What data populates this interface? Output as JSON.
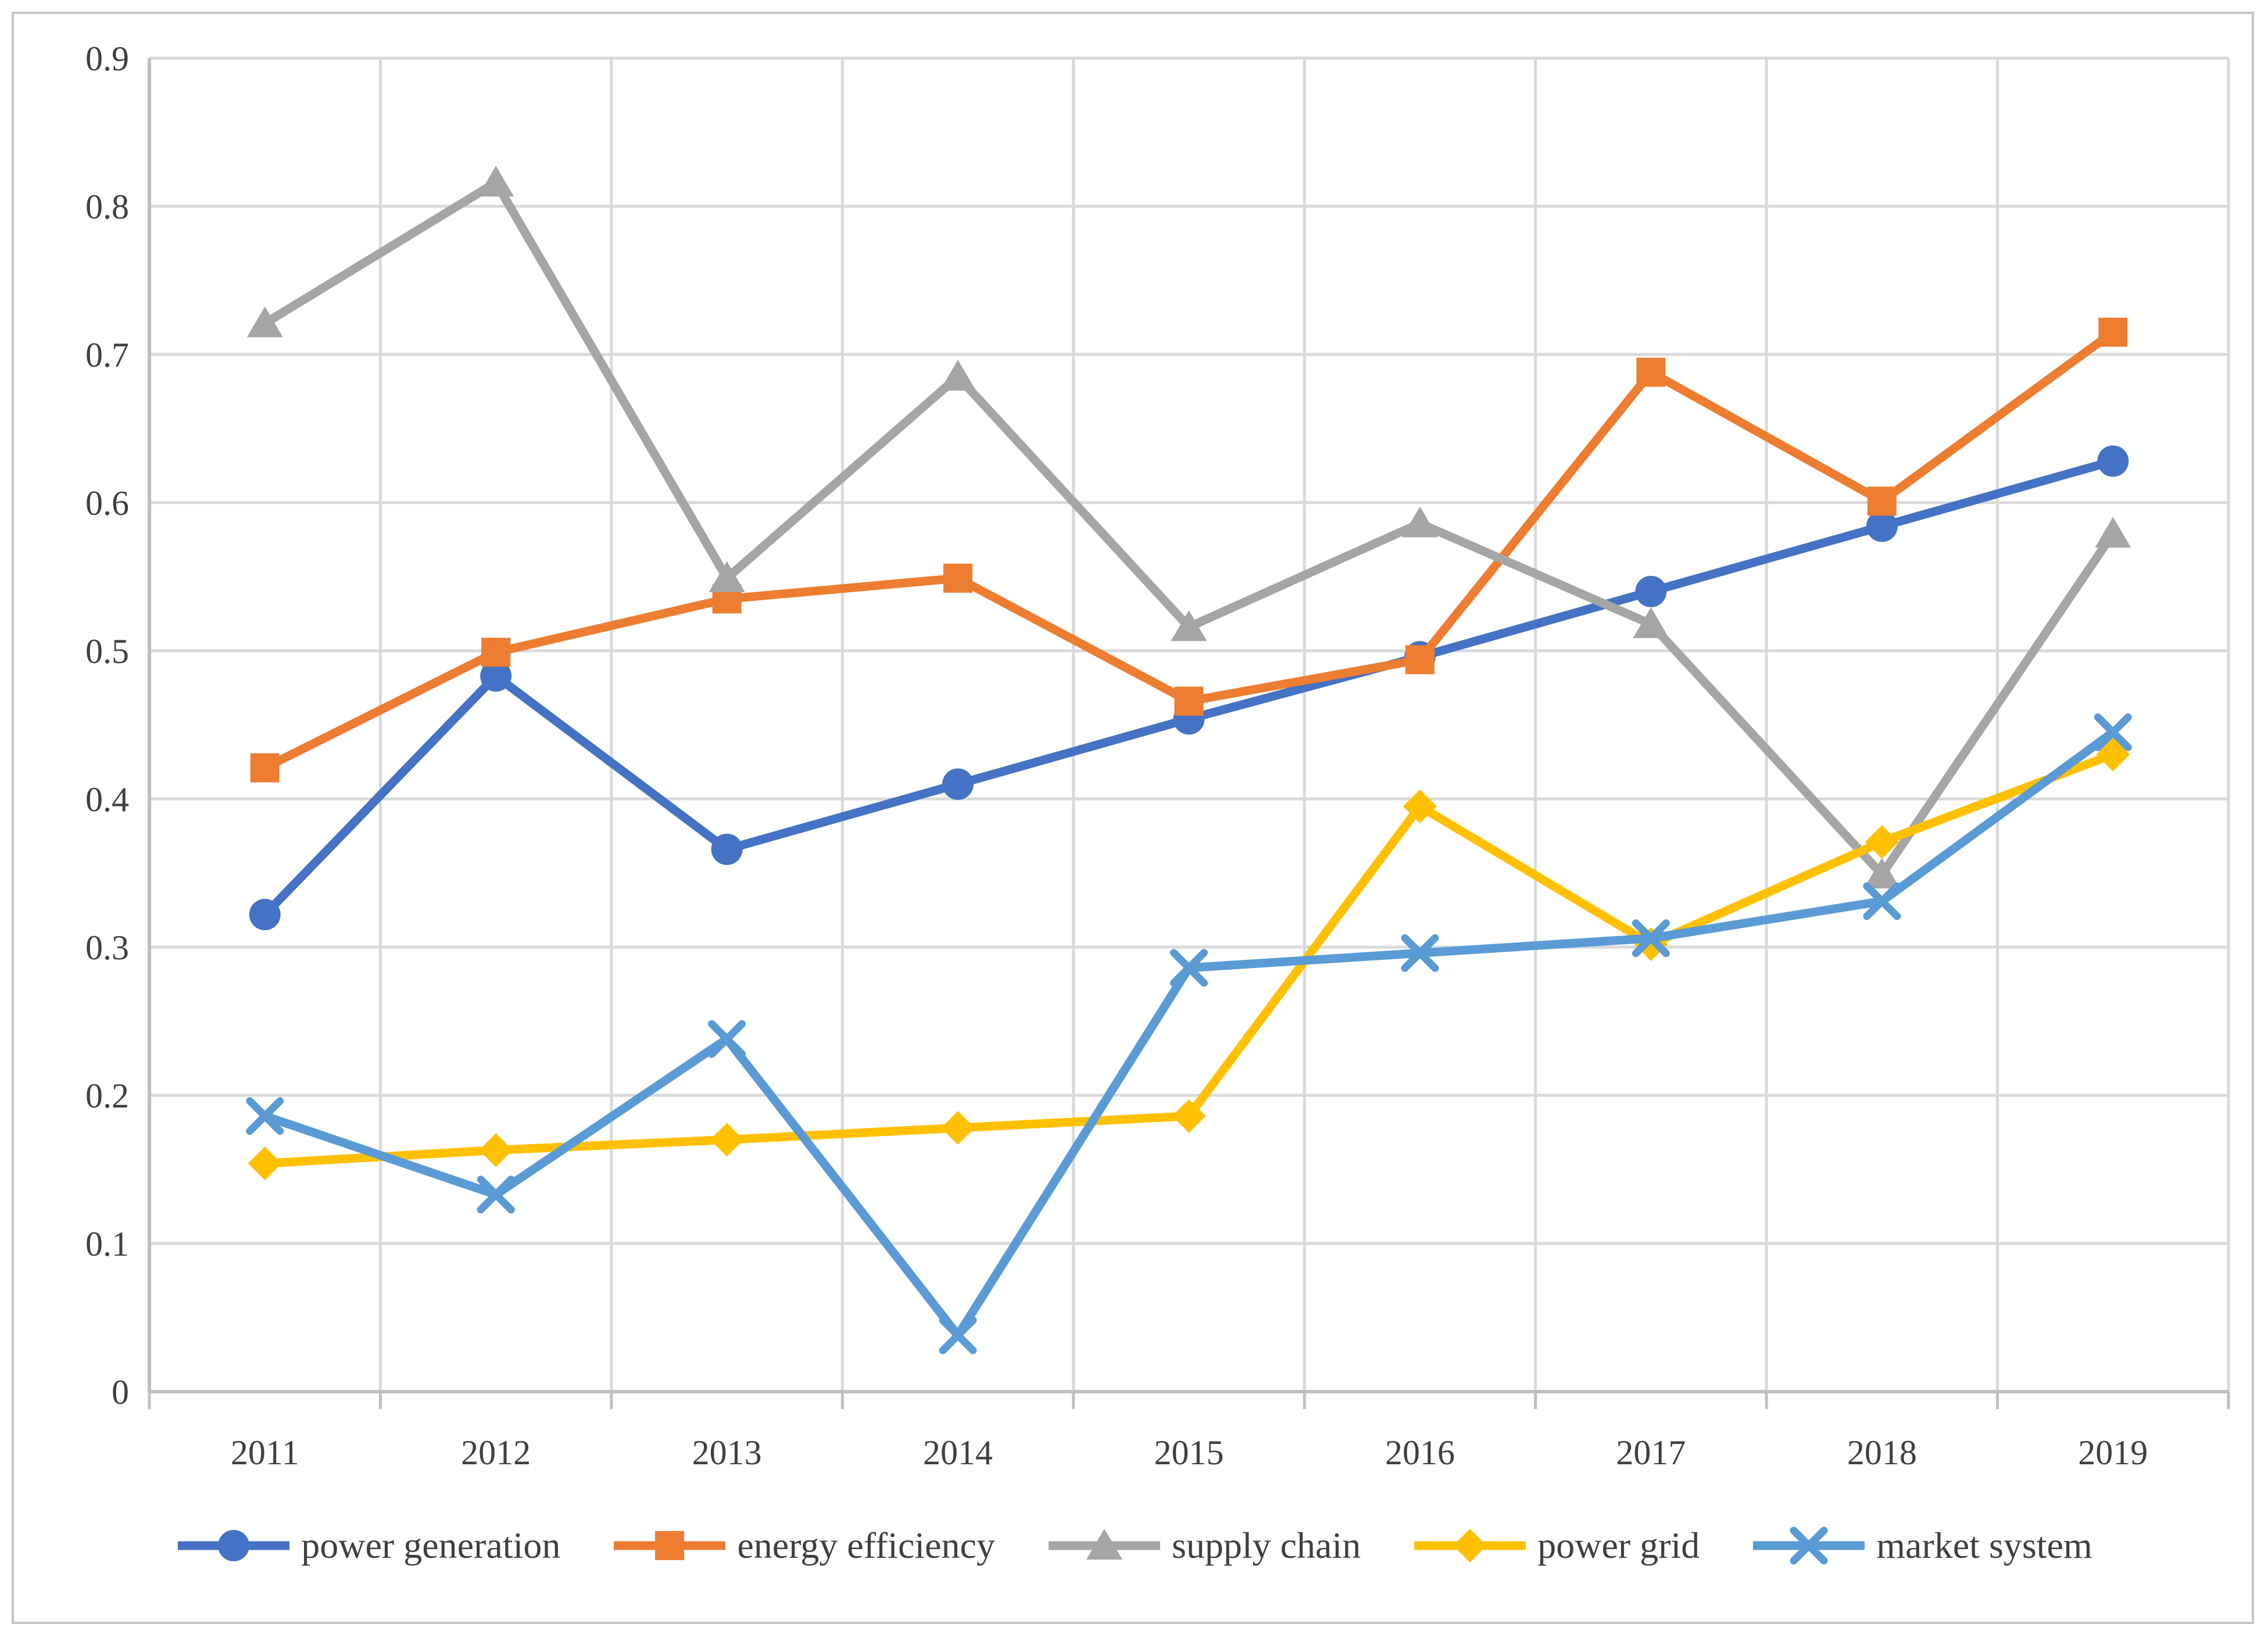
{
  "style": {
    "background": "#FFFFFF",
    "figure_border_color": "#C6C6C6",
    "gridline_color": "#D9D9D9",
    "axis_color": "#BFBFBF",
    "tick_color": "#BFBFBF",
    "label_color": "#3F3F3F"
  },
  "chart_data": {
    "type": "line",
    "title": "",
    "xlabel": "",
    "ylabel": "",
    "x": [
      "2011",
      "2012",
      "2013",
      "2014",
      "2015",
      "2016",
      "2017",
      "2018",
      "2019"
    ],
    "ylim": [
      0,
      0.9
    ],
    "ytick_step": 0.1,
    "ytick_labels_top_to_bottom": [
      "0.9",
      "0.8",
      "0.7",
      "0.6",
      "0.5",
      "0.4",
      "0.3",
      "0.2",
      "0.1",
      "0"
    ],
    "grid": true,
    "legend_position": "bottom",
    "series": [
      {
        "name": "power generation",
        "color": "#4472C4",
        "marker": "circle",
        "values": [
          0.322,
          0.483,
          0.366,
          0.41,
          0.454,
          0.496,
          0.54,
          0.584,
          0.628
        ]
      },
      {
        "name": "energy efficiency",
        "color": "#ED7D31",
        "marker": "square",
        "values": [
          0.421,
          0.499,
          0.535,
          0.549,
          0.466,
          0.494,
          0.688,
          0.601,
          0.715
        ]
      },
      {
        "name": "supply chain",
        "color": "#A5A5A5",
        "marker": "triangle",
        "values": [
          0.721,
          0.816,
          0.549,
          0.685,
          0.516,
          0.586,
          0.518,
          0.349,
          0.579
        ]
      },
      {
        "name": "power grid",
        "color": "#FFC000",
        "marker": "diamond",
        "values": [
          0.154,
          0.163,
          0.17,
          0.178,
          0.186,
          0.395,
          0.302,
          0.371,
          0.43
        ]
      },
      {
        "name": "market system",
        "color": "#5B9BD5",
        "marker": "x",
        "values": [
          0.186,
          0.133,
          0.238,
          0.038,
          0.286,
          0.296,
          0.306,
          0.331,
          0.445
        ]
      }
    ]
  }
}
